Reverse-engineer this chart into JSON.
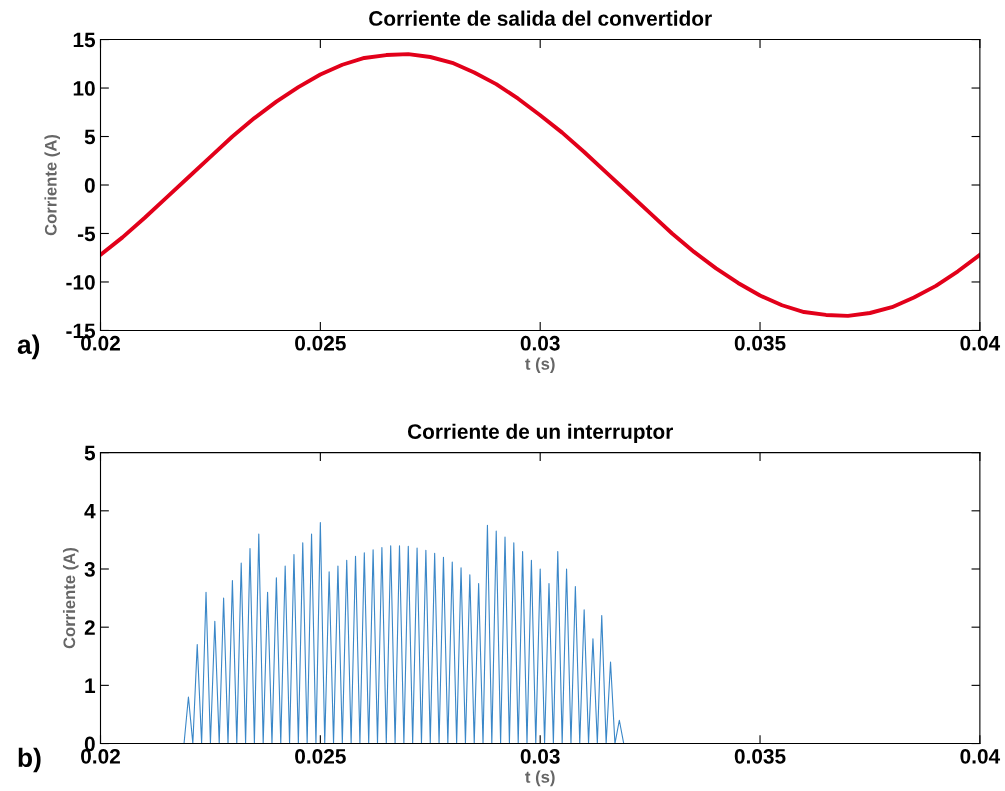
{
  "chart_data": [
    {
      "type": "line",
      "title": "Corriente de salida del convertidor",
      "xlabel": "t (s)",
      "ylabel": "Corriente (A)",
      "annotations": [
        "a)"
      ],
      "grid": false,
      "xlim": [
        0.02,
        0.04
      ],
      "xticks": [
        0.02,
        0.025,
        0.03,
        0.035,
        0.04
      ],
      "ylim": [
        -15,
        15
      ],
      "yticks": [
        -15,
        -10,
        -5,
        0,
        5,
        10,
        15
      ],
      "x": [
        0.02,
        0.0205,
        0.021,
        0.0215,
        0.022,
        0.0225,
        0.023,
        0.0235,
        0.024,
        0.0245,
        0.025,
        0.0255,
        0.026,
        0.0265,
        0.027,
        0.0275,
        0.028,
        0.0285,
        0.029,
        0.0295,
        0.03,
        0.0305,
        0.031,
        0.0315,
        0.032,
        0.0325,
        0.033,
        0.0335,
        0.034,
        0.0345,
        0.035,
        0.0355,
        0.036,
        0.0365,
        0.037,
        0.0375,
        0.038,
        0.0385,
        0.039,
        0.0395,
        0.04
      ],
      "series": [
        {
          "color": "#e2001a",
          "values": [
            -7.2,
            -5.4,
            -3.4,
            -1.3,
            0.8,
            2.9,
            5.0,
            6.9,
            8.6,
            10.1,
            11.4,
            12.4,
            13.1,
            13.4,
            13.5,
            13.2,
            12.6,
            11.6,
            10.4,
            8.9,
            7.2,
            5.4,
            3.4,
            1.3,
            -0.8,
            -2.9,
            -5.0,
            -6.9,
            -8.6,
            -10.1,
            -11.4,
            -12.4,
            -13.1,
            -13.4,
            -13.5,
            -13.2,
            -12.6,
            -11.6,
            -10.4,
            -8.9,
            -7.2
          ]
        }
      ]
    },
    {
      "type": "line",
      "title": "Corriente de un interruptor",
      "xlabel": "t (s)",
      "ylabel": "Corriente (A)",
      "annotations": [
        "b)"
      ],
      "grid": false,
      "xlim": [
        0.02,
        0.04
      ],
      "xticks": [
        0.02,
        0.025,
        0.03,
        0.035,
        0.04
      ],
      "ylim": [
        0,
        5
      ],
      "yticks": [
        0,
        1,
        2,
        3,
        4,
        5
      ],
      "x": [
        0.02,
        0.0219,
        0.022,
        0.0221,
        0.0222,
        0.0223,
        0.0224,
        0.0225,
        0.0226,
        0.0227,
        0.0228,
        0.0229,
        0.023,
        0.0231,
        0.0232,
        0.0233,
        0.0234,
        0.0235,
        0.0236,
        0.0237,
        0.0238,
        0.0239,
        0.024,
        0.0241,
        0.0242,
        0.0243,
        0.0244,
        0.0245,
        0.0246,
        0.0247,
        0.0248,
        0.0249,
        0.025,
        0.0251,
        0.0252,
        0.0253,
        0.0254,
        0.0255,
        0.0256,
        0.0257,
        0.0258,
        0.0259,
        0.026,
        0.0261,
        0.0262,
        0.0263,
        0.0264,
        0.0265,
        0.0266,
        0.0267,
        0.0268,
        0.0269,
        0.027,
        0.0271,
        0.0272,
        0.0273,
        0.0274,
        0.0275,
        0.0276,
        0.0277,
        0.0278,
        0.0279,
        0.028,
        0.0281,
        0.0282,
        0.0283,
        0.0284,
        0.0285,
        0.0286,
        0.0287,
        0.0288,
        0.0289,
        0.029,
        0.0291,
        0.0292,
        0.0293,
        0.0294,
        0.0295,
        0.0296,
        0.0297,
        0.0298,
        0.0299,
        0.03,
        0.0301,
        0.0302,
        0.0303,
        0.0304,
        0.0305,
        0.0306,
        0.0307,
        0.0308,
        0.0309,
        0.031,
        0.0311,
        0.0312,
        0.0313,
        0.0314,
        0.0315,
        0.0316,
        0.0317,
        0.0318,
        0.0319,
        0.04
      ],
      "series": [
        {
          "color": "#3a87c8",
          "values": [
            0,
            0,
            0.8,
            0,
            1.7,
            0,
            2.6,
            0,
            2.1,
            0,
            2.5,
            0,
            2.8,
            0,
            3.1,
            0,
            3.35,
            0,
            3.6,
            0,
            2.6,
            0,
            2.85,
            0,
            3.05,
            0,
            3.25,
            0,
            3.45,
            0,
            3.6,
            0,
            3.8,
            0,
            2.95,
            0,
            3.05,
            0,
            3.15,
            0,
            3.22,
            0,
            3.28,
            0,
            3.33,
            0,
            3.37,
            0,
            3.4,
            0,
            3.4,
            0,
            3.39,
            0,
            3.36,
            0,
            3.32,
            0,
            3.27,
            0,
            3.2,
            0,
            3.12,
            0,
            3.02,
            0,
            2.9,
            0,
            2.75,
            0,
            3.75,
            0,
            3.65,
            0,
            3.55,
            0,
            3.45,
            0,
            3.3,
            0,
            3.15,
            0,
            3.0,
            0,
            2.75,
            0,
            3.3,
            0,
            3.0,
            0,
            2.7,
            0,
            2.3,
            0,
            1.8,
            0,
            2.2,
            0,
            1.4,
            0,
            0.4,
            0,
            0
          ]
        }
      ]
    }
  ]
}
